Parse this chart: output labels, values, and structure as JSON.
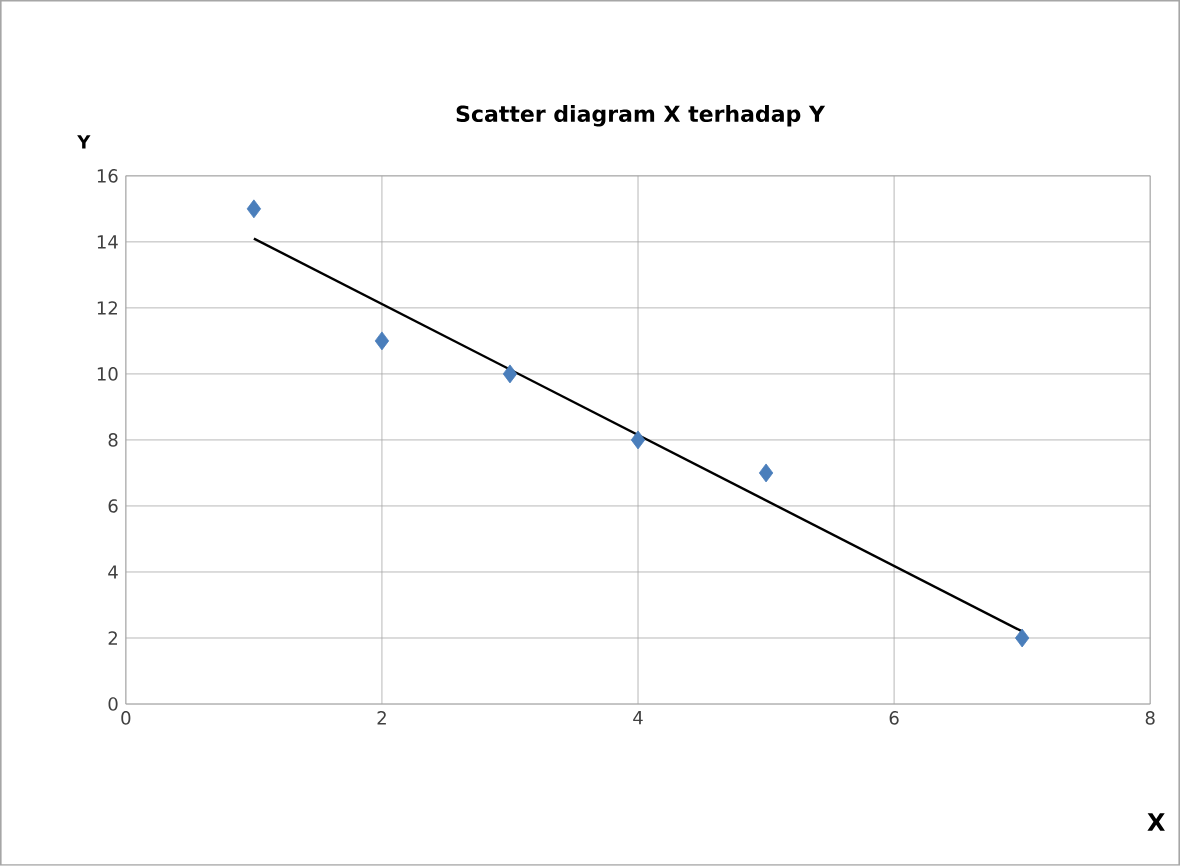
{
  "chart_data": {
    "type": "scatter",
    "title": "Scatter diagram X terhadap Y",
    "xlabel": "X",
    "ylabel": "Y",
    "xlim": [
      0,
      8
    ],
    "ylim": [
      0,
      16
    ],
    "xticks": [
      0,
      2,
      4,
      6,
      8
    ],
    "yticks": [
      0,
      2,
      4,
      6,
      8,
      10,
      12,
      14,
      16
    ],
    "grid": true,
    "series": [
      {
        "marker": "diamond",
        "color": "#4a7ebb",
        "x": [
          1,
          2,
          3,
          4,
          5,
          7
        ],
        "values": [
          15,
          11,
          10,
          8,
          7,
          2
        ]
      },
      {
        "type": "line",
        "marker": "none",
        "color": "#000000",
        "x": [
          1,
          7
        ],
        "values": [
          14.1,
          2.2
        ]
      }
    ]
  }
}
